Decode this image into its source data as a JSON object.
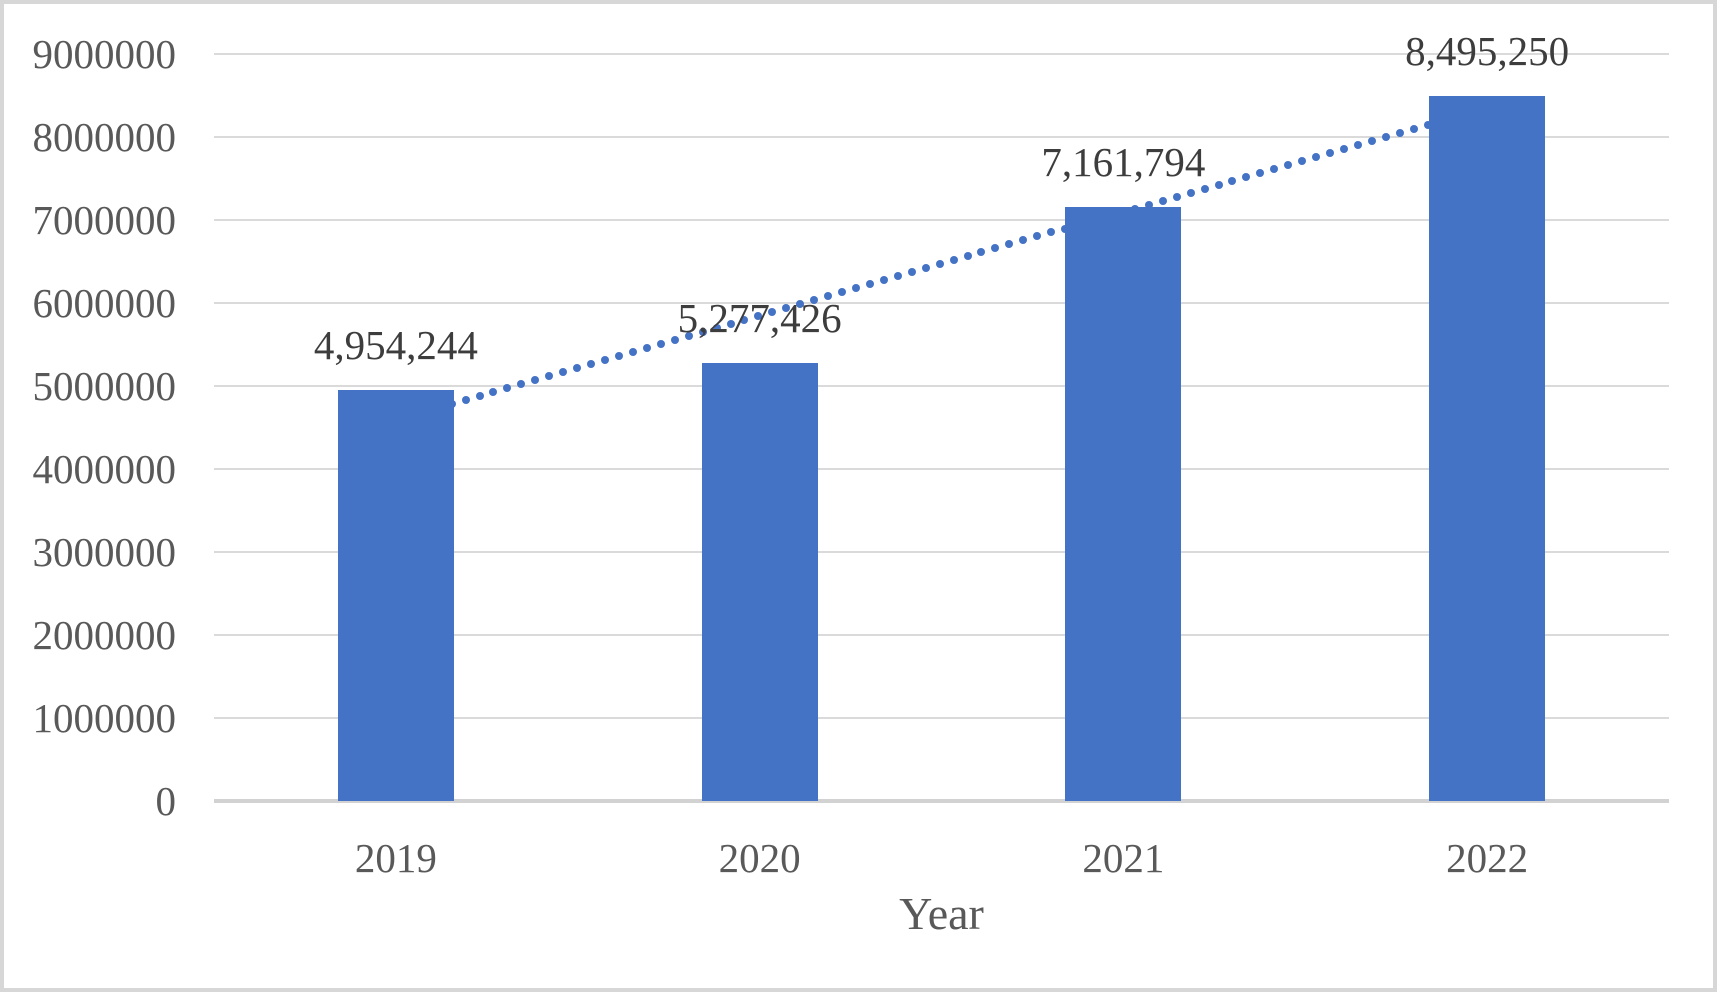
{
  "chart_data": {
    "type": "bar",
    "title": "",
    "categories": [
      "2019",
      "2020",
      "2021",
      "2022"
    ],
    "values": [
      4954244,
      5277426,
      7161794,
      8495250
    ],
    "data_labels": [
      "4,954,244",
      "5,277,426",
      "7,161,794",
      "8,495,250"
    ],
    "series_name": "",
    "xlabel": "Year",
    "ylabel": "",
    "ylim": [
      0,
      9000000
    ],
    "yticks": [
      {
        "value": 0,
        "label": "0"
      },
      {
        "value": 1000000,
        "label": "1000000"
      },
      {
        "value": 2000000,
        "label": "2000000"
      },
      {
        "value": 3000000,
        "label": "3000000"
      },
      {
        "value": 4000000,
        "label": "4000000"
      },
      {
        "value": 5000000,
        "label": "5000000"
      },
      {
        "value": 6000000,
        "label": "6000000"
      },
      {
        "value": 7000000,
        "label": "7000000"
      },
      {
        "value": 8000000,
        "label": "8000000"
      },
      {
        "value": 9000000,
        "label": "9000000"
      }
    ],
    "grid": true,
    "legend_position": "none",
    "trendline": {
      "type": "linear",
      "style": "dotted"
    },
    "colors": {
      "bar": "#4472C4",
      "trendline": "#4472C4",
      "axis_text": "#595959",
      "data_label_text": "#3d3d3d",
      "gridline": "#dadada",
      "axis_line": "#d2d2d2",
      "frame_border": "#d7d7d7",
      "background": "#ffffff"
    }
  }
}
